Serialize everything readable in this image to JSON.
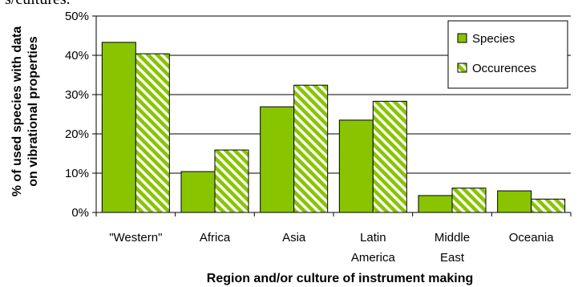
{
  "top_fragment": "s/cultures.",
  "colors": {
    "bar": "#88c400",
    "bar_edge": "#000000",
    "hatch_bg": "#ffffff"
  },
  "chart_data": {
    "type": "bar",
    "categories": [
      [
        "\"Western\""
      ],
      [
        "Africa"
      ],
      [
        "Asia"
      ],
      [
        "Latin",
        "America"
      ],
      [
        "Middle",
        "East"
      ],
      [
        "Oceania"
      ]
    ],
    "series": [
      {
        "name": "Species",
        "values": [
          43.3,
          10.4,
          26.9,
          23.5,
          4.3,
          5.5
        ],
        "pattern": "solid"
      },
      {
        "name": "Occurences",
        "values": [
          40.4,
          15.9,
          32.4,
          28.3,
          6.2,
          3.4
        ],
        "pattern": "hatched"
      }
    ],
    "ylabel": "% of used species with data on vibrational properties",
    "ylabel_lines": [
      "% of used species with data",
      "on vibrational properties"
    ],
    "xlabel": "Region and/or culture of instrument making",
    "ylim": [
      0,
      50
    ],
    "yticks": [
      "0%",
      "10%",
      "20%",
      "30%",
      "40%",
      "50%"
    ],
    "grid": true,
    "legend_position": "top-right"
  }
}
